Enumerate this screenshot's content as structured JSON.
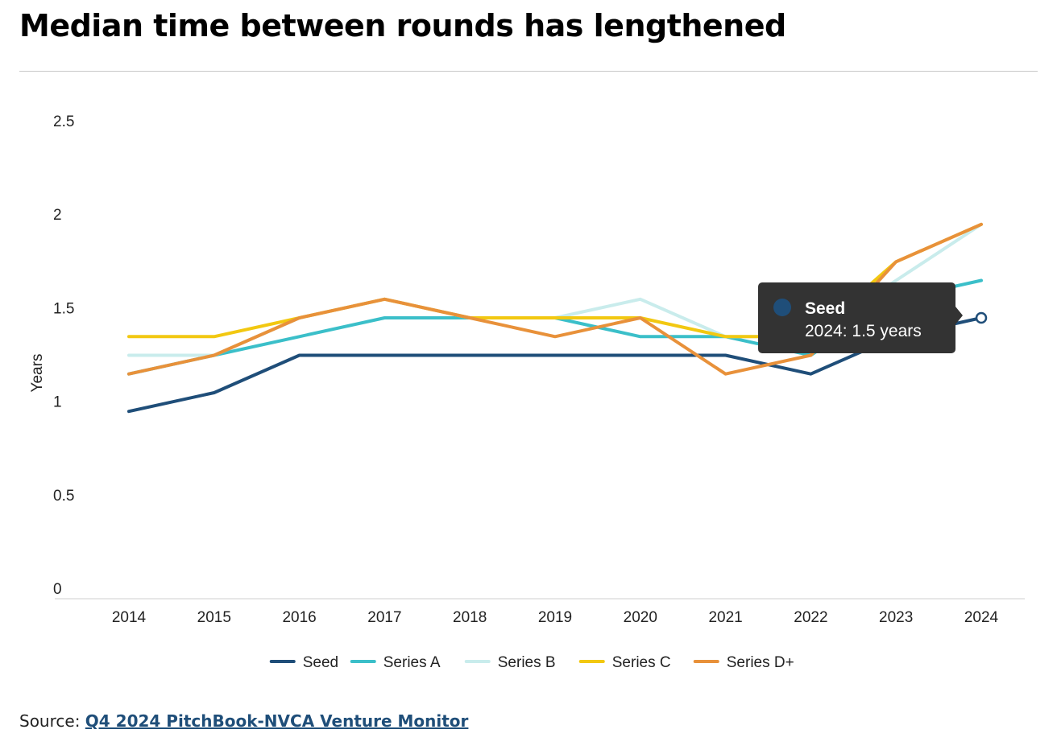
{
  "page": {
    "title": "Median time between rounds has lengthened",
    "source_prefix": "Source: ",
    "source_link": "Q4 2024 PitchBook-NVCA Venture Monitor"
  },
  "tooltip": {
    "series": "Seed",
    "text": "2024: 1.5 years",
    "color": "#1f4e79"
  },
  "chart_data": {
    "type": "line",
    "title": "",
    "xlabel": "",
    "ylabel": "Years",
    "x": [
      "2014",
      "2015",
      "2016",
      "2017",
      "2018",
      "2019",
      "2020",
      "2021",
      "2022",
      "2023",
      "2024"
    ],
    "ylim": [
      0,
      2.5
    ],
    "yticks": [
      "0",
      "0.5",
      "1",
      "1.5",
      "2",
      "2.5"
    ],
    "grid": false,
    "legend_position": "bottom",
    "series": [
      {
        "name": "Seed",
        "color": "#1f4e79",
        "values": [
          0.95,
          1.05,
          1.25,
          1.25,
          1.25,
          1.25,
          1.25,
          1.25,
          1.15,
          1.35,
          1.45
        ]
      },
      {
        "name": "Series A",
        "color": "#3bbfc9",
        "values": [
          1.15,
          1.25,
          1.35,
          1.45,
          1.45,
          1.45,
          1.35,
          1.35,
          1.25,
          1.55,
          1.65
        ]
      },
      {
        "name": "Series B",
        "color": "#c9ecec",
        "values": [
          1.25,
          1.25,
          1.45,
          1.55,
          1.45,
          1.45,
          1.55,
          1.35,
          1.35,
          1.65,
          1.95
        ]
      },
      {
        "name": "Series C",
        "color": "#f2c811",
        "values": [
          1.35,
          1.35,
          1.45,
          1.55,
          1.45,
          1.45,
          1.45,
          1.35,
          1.35,
          1.75,
          1.95
        ]
      },
      {
        "name": "Series D+",
        "color": "#e8913a",
        "values": [
          1.15,
          1.25,
          1.45,
          1.55,
          1.45,
          1.35,
          1.45,
          1.15,
          1.25,
          1.75,
          1.95
        ]
      }
    ]
  }
}
